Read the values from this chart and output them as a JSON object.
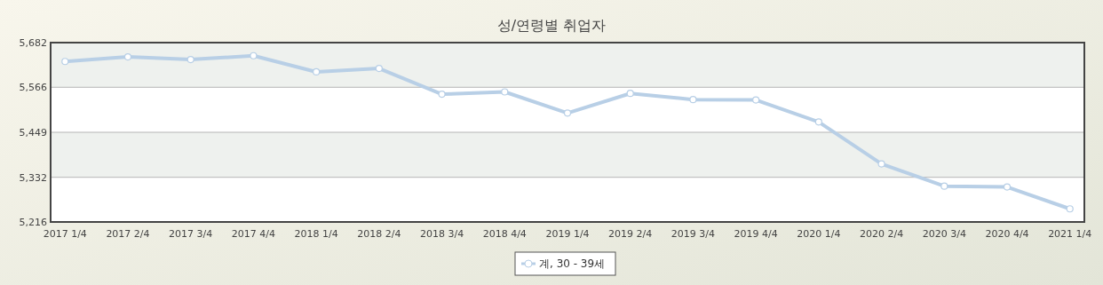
{
  "chart_data": {
    "type": "line",
    "title": "성/연령별 취업자",
    "categories": [
      "2017 1/4",
      "2017 2/4",
      "2017 3/4",
      "2017 4/4",
      "2018 1/4",
      "2018 2/4",
      "2018 3/4",
      "2018 4/4",
      "2019 1/4",
      "2019 2/4",
      "2019 3/4",
      "2019 4/4",
      "2020 1/4",
      "2020 2/4",
      "2020 3/4",
      "2020 4/4",
      "2021 1/4"
    ],
    "series": [
      {
        "name": "계, 30 - 39세",
        "color": "#b8cfe6",
        "values": [
          5633,
          5645,
          5638,
          5648,
          5606,
          5615,
          5548,
          5554,
          5499,
          5550,
          5534,
          5533,
          5476,
          5367,
          5309,
          5307,
          5250
        ]
      }
    ],
    "ylim": [
      5216,
      5682
    ],
    "yticks": [
      {
        "value": 5216,
        "label": "5,216"
      },
      {
        "value": 5332,
        "label": "5,332"
      },
      {
        "value": 5449,
        "label": "5,449"
      },
      {
        "value": 5566,
        "label": "5,566"
      },
      {
        "value": 5682,
        "label": "5,682"
      }
    ],
    "grid": "y",
    "legend": "bottom",
    "marker": "circle",
    "line_style": "solid"
  }
}
